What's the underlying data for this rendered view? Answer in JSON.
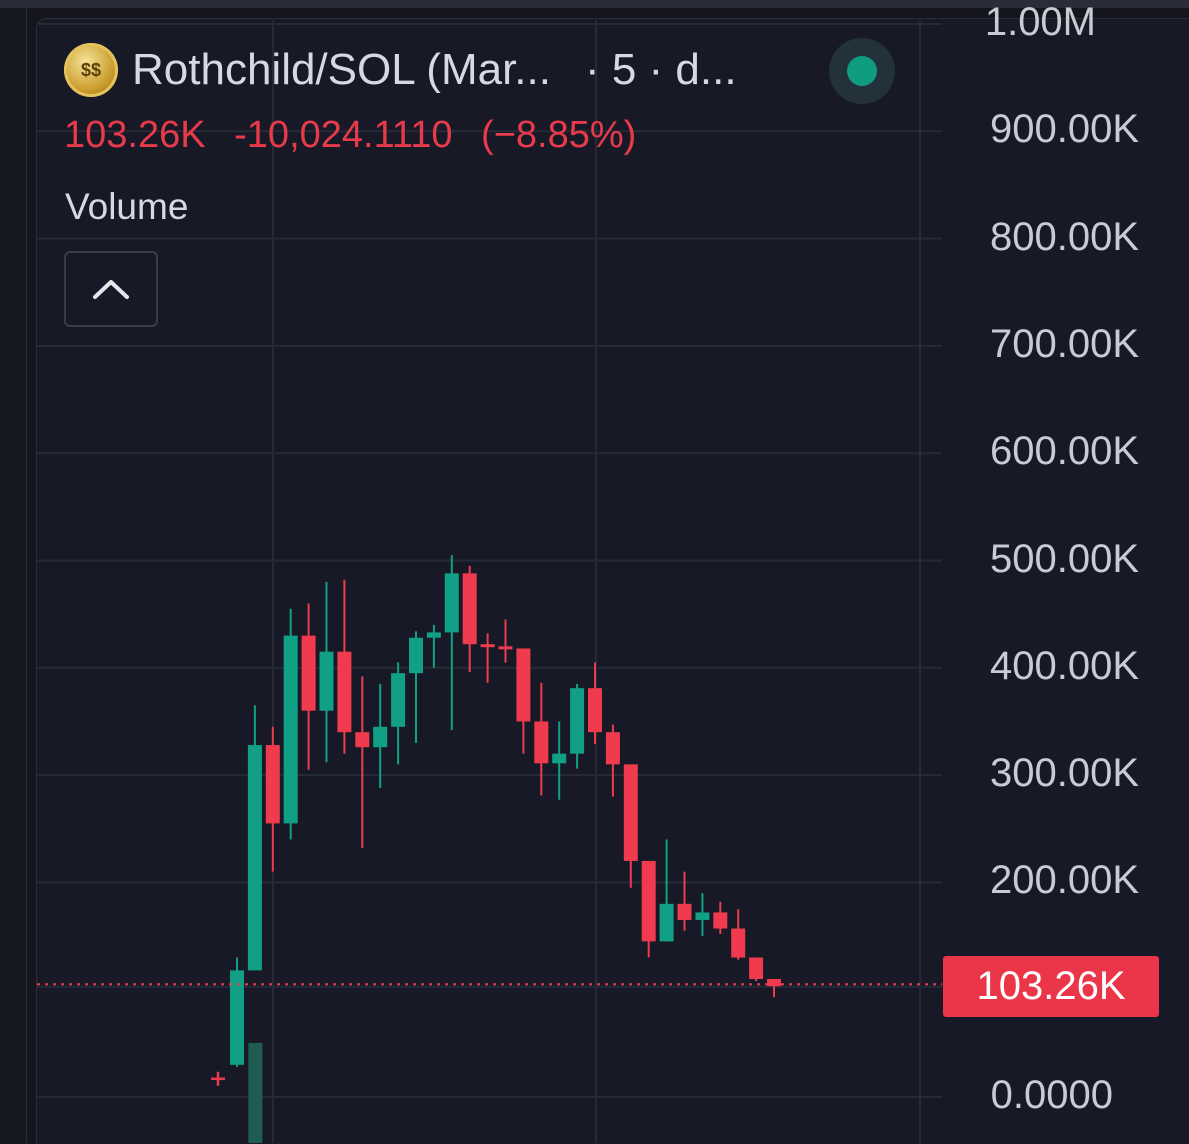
{
  "header": {
    "symbol_title": "Rothchild/SOL (Mar...",
    "interval": "· 5 · d...",
    "icon": "rothchild-coin-icon",
    "status": "live-status-indicator",
    "status_color": "#109c7f"
  },
  "quote": {
    "last": "103.26K",
    "change": "-10,024.1110",
    "change_pct": "(−8.85%)",
    "color": "#e83a4a"
  },
  "study": {
    "label": "Volume",
    "collapse_icon": "chevron-up-icon"
  },
  "price_tag": "103.26K",
  "colors": {
    "up": "#11a085",
    "down": "#ef3b4d",
    "background": "#171a26",
    "grid": "#262a36"
  },
  "chart_data": {
    "type": "candlestick",
    "y_axis": {
      "ticks": [
        {
          "value": 0,
          "label": "0.0000"
        },
        {
          "value": 200000,
          "label": "200.00K"
        },
        {
          "value": 300000,
          "label": "300.00K"
        },
        {
          "value": 400000,
          "label": "400.00K"
        },
        {
          "value": 500000,
          "label": "500.00K"
        },
        {
          "value": 600000,
          "label": "600.00K"
        },
        {
          "value": 700000,
          "label": "700.00K"
        },
        {
          "value": 800000,
          "label": "800.00K"
        },
        {
          "value": 900000,
          "label": "900.00K"
        },
        {
          "value": 1000000,
          "label": "1.00M"
        }
      ],
      "range": [
        0,
        1000000
      ]
    },
    "last_price": 103260,
    "first_trade_marker": 30000,
    "candles": [
      {
        "o": 30000,
        "h": 130000,
        "l": 28000,
        "c": 118000
      },
      {
        "o": 118000,
        "h": 365000,
        "l": 118000,
        "c": 328000
      },
      {
        "o": 328000,
        "h": 345000,
        "l": 210000,
        "c": 255000
      },
      {
        "o": 255000,
        "h": 455000,
        "l": 240000,
        "c": 430000
      },
      {
        "o": 430000,
        "h": 460000,
        "l": 305000,
        "c": 360000
      },
      {
        "o": 360000,
        "h": 480000,
        "l": 312000,
        "c": 415000
      },
      {
        "o": 415000,
        "h": 482000,
        "l": 320000,
        "c": 340000
      },
      {
        "o": 340000,
        "h": 392000,
        "l": 232000,
        "c": 326000
      },
      {
        "o": 326000,
        "h": 385000,
        "l": 288000,
        "c": 345000
      },
      {
        "o": 345000,
        "h": 405000,
        "l": 310000,
        "c": 395000
      },
      {
        "o": 395000,
        "h": 434000,
        "l": 330000,
        "c": 428000
      },
      {
        "o": 428000,
        "h": 440000,
        "l": 400000,
        "c": 433000
      },
      {
        "o": 433000,
        "h": 505000,
        "l": 342000,
        "c": 488000
      },
      {
        "o": 488000,
        "h": 495000,
        "l": 396000,
        "c": 422000
      },
      {
        "o": 422000,
        "h": 432000,
        "l": 386000,
        "c": 420000
      },
      {
        "o": 420000,
        "h": 445000,
        "l": 405000,
        "c": 418000
      },
      {
        "o": 418000,
        "h": 418000,
        "l": 320000,
        "c": 350000
      },
      {
        "o": 350000,
        "h": 386000,
        "l": 281000,
        "c": 311000
      },
      {
        "o": 311000,
        "h": 350000,
        "l": 277000,
        "c": 320000
      },
      {
        "o": 320000,
        "h": 385000,
        "l": 306000,
        "c": 381000
      },
      {
        "o": 381000,
        "h": 405000,
        "l": 329000,
        "c": 340000
      },
      {
        "o": 340000,
        "h": 347000,
        "l": 280000,
        "c": 310000
      },
      {
        "o": 310000,
        "h": 310000,
        "l": 195000,
        "c": 220000
      },
      {
        "o": 220000,
        "h": 220000,
        "l": 130000,
        "c": 145000
      },
      {
        "o": 145000,
        "h": 240000,
        "l": 145000,
        "c": 180000
      },
      {
        "o": 180000,
        "h": 210000,
        "l": 155000,
        "c": 165000
      },
      {
        "o": 165000,
        "h": 190000,
        "l": 150000,
        "c": 172000
      },
      {
        "o": 172000,
        "h": 182000,
        "l": 152000,
        "c": 157000
      },
      {
        "o": 157000,
        "h": 175000,
        "l": 128000,
        "c": 130000
      },
      {
        "o": 130000,
        "h": 130000,
        "l": 108000,
        "c": 110000
      },
      {
        "o": 110000,
        "h": 110000,
        "l": 93000,
        "c": 103260
      }
    ],
    "volume_bars": [
      {
        "index": 1,
        "direction": "up"
      }
    ],
    "grid": true
  }
}
